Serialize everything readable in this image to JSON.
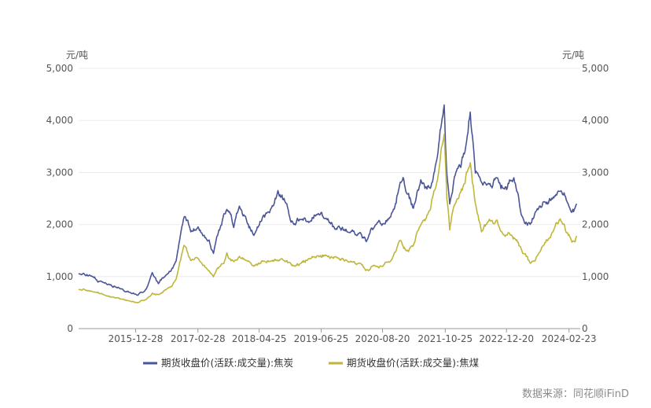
{
  "chart_data": {
    "type": "line",
    "left_axis_unit": "元/吨",
    "right_axis_unit": "元/吨",
    "ylim": [
      0,
      5000
    ],
    "yticks": [
      0,
      1000,
      2000,
      3000,
      4000,
      5000
    ],
    "ytick_labels": [
      "0",
      "1,000",
      "2,000",
      "3,000",
      "4,000",
      "5,000"
    ],
    "x_tick_labels": [
      "2015-12-28",
      "2017-02-28",
      "2018-04-25",
      "2019-06-25",
      "2020-08-20",
      "2021-10-25",
      "2022-12-20",
      "2024-02-23"
    ],
    "x_tick_dates": [
      "2015-12-28",
      "2017-02-28",
      "2018-04-25",
      "2019-06-25",
      "2020-08-20",
      "2021-10-25",
      "2022-12-20",
      "2024-02-23"
    ],
    "xlim": [
      "2014-12-01",
      "2024-05-10"
    ],
    "grid": true,
    "legend_position": "bottom",
    "series": [
      {
        "name": "期货收盘价(活跃:成交量):焦炭",
        "color": "#4a5597",
        "points": [
          [
            "2014-12-01",
            1060
          ],
          [
            "2015-03-01",
            1010
          ],
          [
            "2015-06-01",
            880
          ],
          [
            "2015-09-01",
            790
          ],
          [
            "2015-11-15",
            700
          ],
          [
            "2016-01-10",
            640
          ],
          [
            "2016-03-10",
            760
          ],
          [
            "2016-04-20",
            1080
          ],
          [
            "2016-06-01",
            860
          ],
          [
            "2016-08-01",
            1050
          ],
          [
            "2016-10-01",
            1300
          ],
          [
            "2016-11-25",
            2150
          ],
          [
            "2017-01-10",
            1850
          ],
          [
            "2017-03-01",
            1950
          ],
          [
            "2017-05-01",
            1700
          ],
          [
            "2017-06-15",
            1450
          ],
          [
            "2017-08-10",
            2000
          ],
          [
            "2017-09-15",
            2300
          ],
          [
            "2017-11-01",
            1950
          ],
          [
            "2017-12-10",
            2350
          ],
          [
            "2018-01-20",
            2150
          ],
          [
            "2018-03-20",
            1800
          ],
          [
            "2018-05-01",
            2050
          ],
          [
            "2018-06-01",
            2150
          ],
          [
            "2018-07-15",
            2300
          ],
          [
            "2018-09-01",
            2650
          ],
          [
            "2018-11-01",
            2400
          ],
          [
            "2018-12-20",
            2000
          ],
          [
            "2019-02-01",
            2100
          ],
          [
            "2019-04-01",
            2050
          ],
          [
            "2019-06-01",
            2200
          ],
          [
            "2019-08-01",
            2100
          ],
          [
            "2019-10-01",
            1900
          ],
          [
            "2020-01-01",
            1850
          ],
          [
            "2020-03-20",
            1850
          ],
          [
            "2020-05-01",
            1680
          ],
          [
            "2020-07-01",
            1980
          ],
          [
            "2020-08-20",
            2000
          ],
          [
            "2020-10-15",
            2150
          ],
          [
            "2020-12-20",
            2800
          ],
          [
            "2021-02-01",
            2600
          ],
          [
            "2021-03-20",
            2300
          ],
          [
            "2021-05-10",
            2850
          ],
          [
            "2021-07-15",
            2700
          ],
          [
            "2021-09-01",
            3300
          ],
          [
            "2021-10-18",
            4300
          ],
          [
            "2021-11-05",
            3000
          ],
          [
            "2021-11-25",
            2400
          ],
          [
            "2022-01-01",
            2950
          ],
          [
            "2022-03-10",
            3400
          ],
          [
            "2022-04-15",
            4150
          ],
          [
            "2022-05-20",
            3000
          ],
          [
            "2022-07-01",
            2800
          ],
          [
            "2022-08-15",
            2800
          ],
          [
            "2022-10-15",
            2900
          ],
          [
            "2022-12-01",
            2700
          ],
          [
            "2023-01-20",
            2850
          ],
          [
            "2023-03-01",
            2650
          ],
          [
            "2023-04-10",
            2150
          ],
          [
            "2023-06-01",
            2000
          ],
          [
            "2023-07-20",
            2300
          ],
          [
            "2023-09-01",
            2450
          ],
          [
            "2023-11-01",
            2500
          ],
          [
            "2023-12-20",
            2650
          ],
          [
            "2024-01-20",
            2600
          ],
          [
            "2024-02-23",
            2350
          ],
          [
            "2024-03-20",
            2300
          ],
          [
            "2024-04-15",
            2400
          ]
        ]
      },
      {
        "name": "期货收盘价(活跃:成交量):焦煤",
        "color": "#bfb63a",
        "points": [
          [
            "2014-12-01",
            750
          ],
          [
            "2015-03-01",
            720
          ],
          [
            "2015-06-01",
            640
          ],
          [
            "2015-09-01",
            590
          ],
          [
            "2015-11-15",
            530
          ],
          [
            "2016-01-10",
            500
          ],
          [
            "2016-03-10",
            560
          ],
          [
            "2016-04-20",
            680
          ],
          [
            "2016-06-01",
            650
          ],
          [
            "2016-08-01",
            770
          ],
          [
            "2016-10-01",
            950
          ],
          [
            "2016-11-25",
            1600
          ],
          [
            "2017-01-10",
            1300
          ],
          [
            "2017-03-01",
            1350
          ],
          [
            "2017-05-01",
            1150
          ],
          [
            "2017-06-15",
            1000
          ],
          [
            "2017-08-10",
            1250
          ],
          [
            "2017-09-15",
            1450
          ],
          [
            "2017-11-01",
            1280
          ],
          [
            "2017-12-10",
            1380
          ],
          [
            "2018-01-20",
            1320
          ],
          [
            "2018-03-20",
            1200
          ],
          [
            "2018-05-01",
            1250
          ],
          [
            "2018-06-01",
            1300
          ],
          [
            "2018-07-15",
            1300
          ],
          [
            "2018-09-01",
            1300
          ],
          [
            "2018-11-01",
            1300
          ],
          [
            "2018-12-20",
            1200
          ],
          [
            "2019-02-01",
            1250
          ],
          [
            "2019-04-01",
            1350
          ],
          [
            "2019-06-01",
            1400
          ],
          [
            "2019-08-01",
            1400
          ],
          [
            "2019-10-01",
            1380
          ],
          [
            "2020-01-01",
            1280
          ],
          [
            "2020-03-20",
            1250
          ],
          [
            "2020-05-01",
            1120
          ],
          [
            "2020-07-01",
            1200
          ],
          [
            "2020-08-20",
            1200
          ],
          [
            "2020-10-15",
            1300
          ],
          [
            "2020-12-20",
            1700
          ],
          [
            "2021-02-01",
            1500
          ],
          [
            "2021-03-20",
            1600
          ],
          [
            "2021-05-10",
            2000
          ],
          [
            "2021-07-15",
            2300
          ],
          [
            "2021-09-01",
            2850
          ],
          [
            "2021-10-18",
            3750
          ],
          [
            "2021-11-05",
            2500
          ],
          [
            "2021-11-25",
            1900
          ],
          [
            "2022-01-01",
            2400
          ],
          [
            "2022-03-10",
            2800
          ],
          [
            "2022-04-15",
            3200
          ],
          [
            "2022-05-20",
            2400
          ],
          [
            "2022-07-01",
            1850
          ],
          [
            "2022-08-15",
            2050
          ],
          [
            "2022-10-15",
            2100
          ],
          [
            "2022-12-01",
            1800
          ],
          [
            "2023-01-20",
            1800
          ],
          [
            "2023-03-01",
            1700
          ],
          [
            "2023-04-10",
            1450
          ],
          [
            "2023-06-01",
            1250
          ],
          [
            "2023-07-20",
            1400
          ],
          [
            "2023-09-01",
            1600
          ],
          [
            "2023-11-01",
            1850
          ],
          [
            "2023-12-20",
            2100
          ],
          [
            "2024-01-20",
            2000
          ],
          [
            "2024-02-23",
            1800
          ],
          [
            "2024-03-20",
            1680
          ],
          [
            "2024-04-15",
            1780
          ]
        ]
      }
    ]
  },
  "source_text": "数据来源：同花顺iFinD"
}
